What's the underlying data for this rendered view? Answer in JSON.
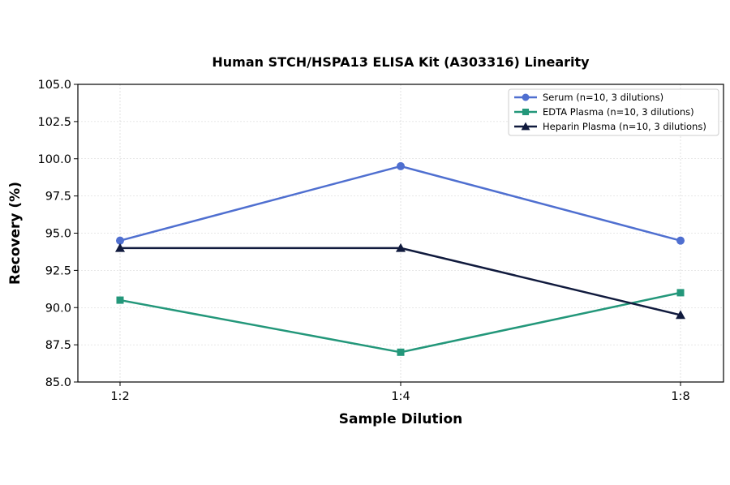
{
  "chart_data": {
    "type": "line",
    "title": "Human STCH/HSPA13 ELISA Kit (A303316) Linearity",
    "xlabel": "Sample Dilution",
    "ylabel": "Recovery (%)",
    "categories": [
      "1:2",
      "1:4",
      "1:8"
    ],
    "ylim": [
      85.0,
      105.0
    ],
    "yticks": [
      "85.0",
      "87.5",
      "90.0",
      "92.5",
      "95.0",
      "97.5",
      "100.0",
      "102.5",
      "105.0"
    ],
    "grid": true,
    "legend_position": "top-right",
    "series": [
      {
        "name": "Serum (n=10, 3 dilutions)",
        "values": [
          94.5,
          99.5,
          94.5
        ],
        "color": "#4f6fd0",
        "marker": "circle"
      },
      {
        "name": "EDTA Plasma (n=10, 3 dilutions)",
        "values": [
          90.5,
          87.0,
          91.0
        ],
        "color": "#23977a",
        "marker": "square"
      },
      {
        "name": "Heparin Plasma (n=10, 3 dilutions)",
        "values": [
          94.0,
          94.0,
          89.5
        ],
        "color": "#101a3d",
        "marker": "triangle"
      }
    ]
  }
}
